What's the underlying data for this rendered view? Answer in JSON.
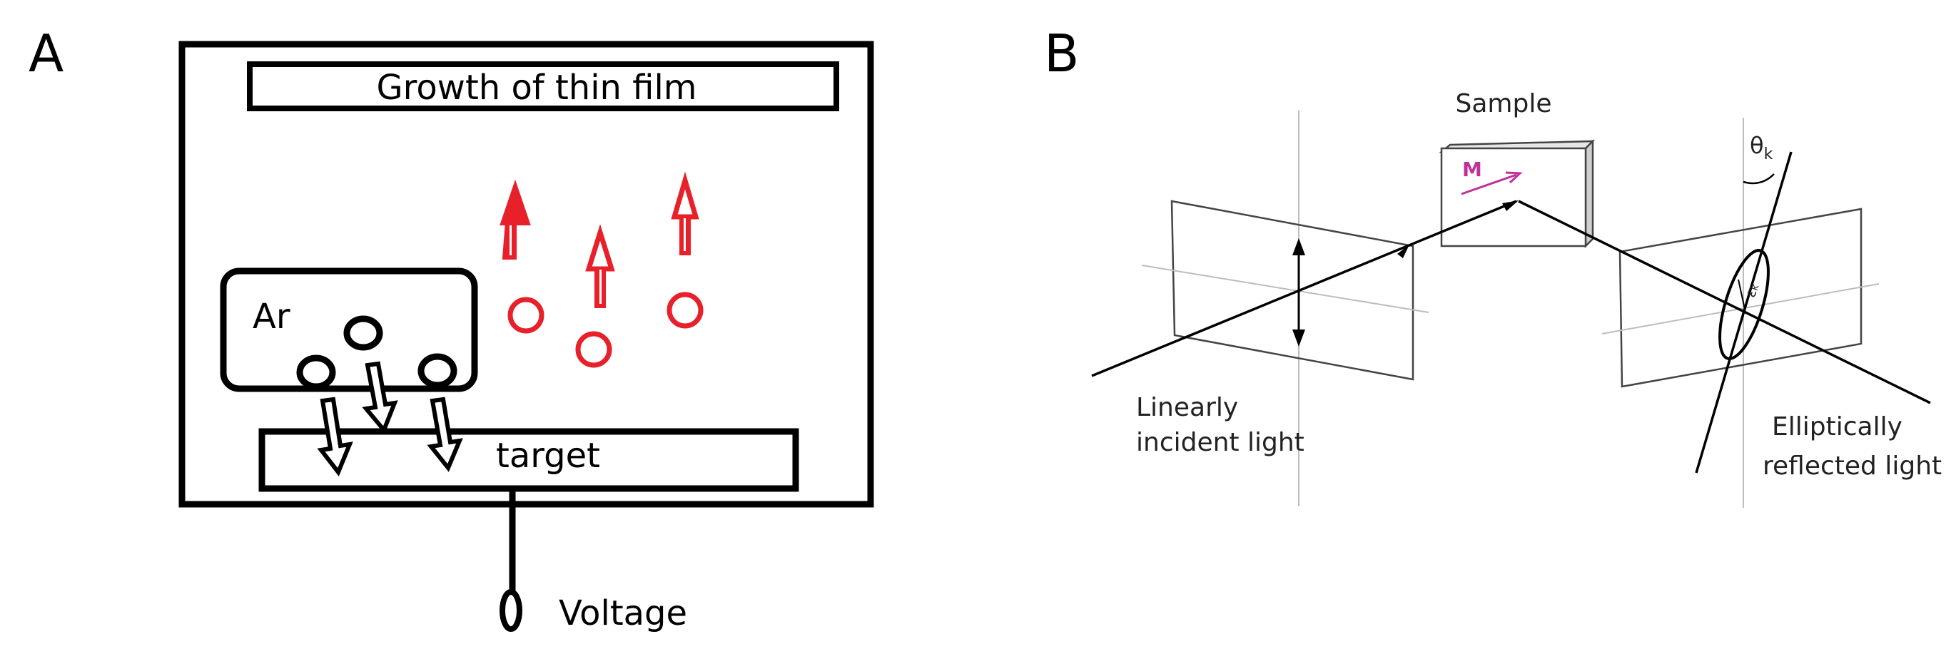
{
  "panel_a": {
    "letter": "A",
    "film_label": "Growth of thin film",
    "gas_label": "Ar",
    "target_label": "target",
    "voltage_label": "Voltage"
  },
  "panel_b": {
    "letter": "B",
    "sample_label": "Sample",
    "magnetization_label": "M",
    "theta_label": "θ",
    "theta_subscript": "k",
    "epsilon_label": "ε",
    "epsilon_subscript": "k",
    "incident_label_line1": "Linearly",
    "incident_label_line2": "incident light",
    "reflected_label_line1": "Elliptically",
    "reflected_label_line2": "reflected light"
  },
  "colors": {
    "line": "#000000",
    "sputtered_particle": "#e8202a",
    "magnetization": "#c0309a",
    "diagram_gray": "#444444"
  }
}
